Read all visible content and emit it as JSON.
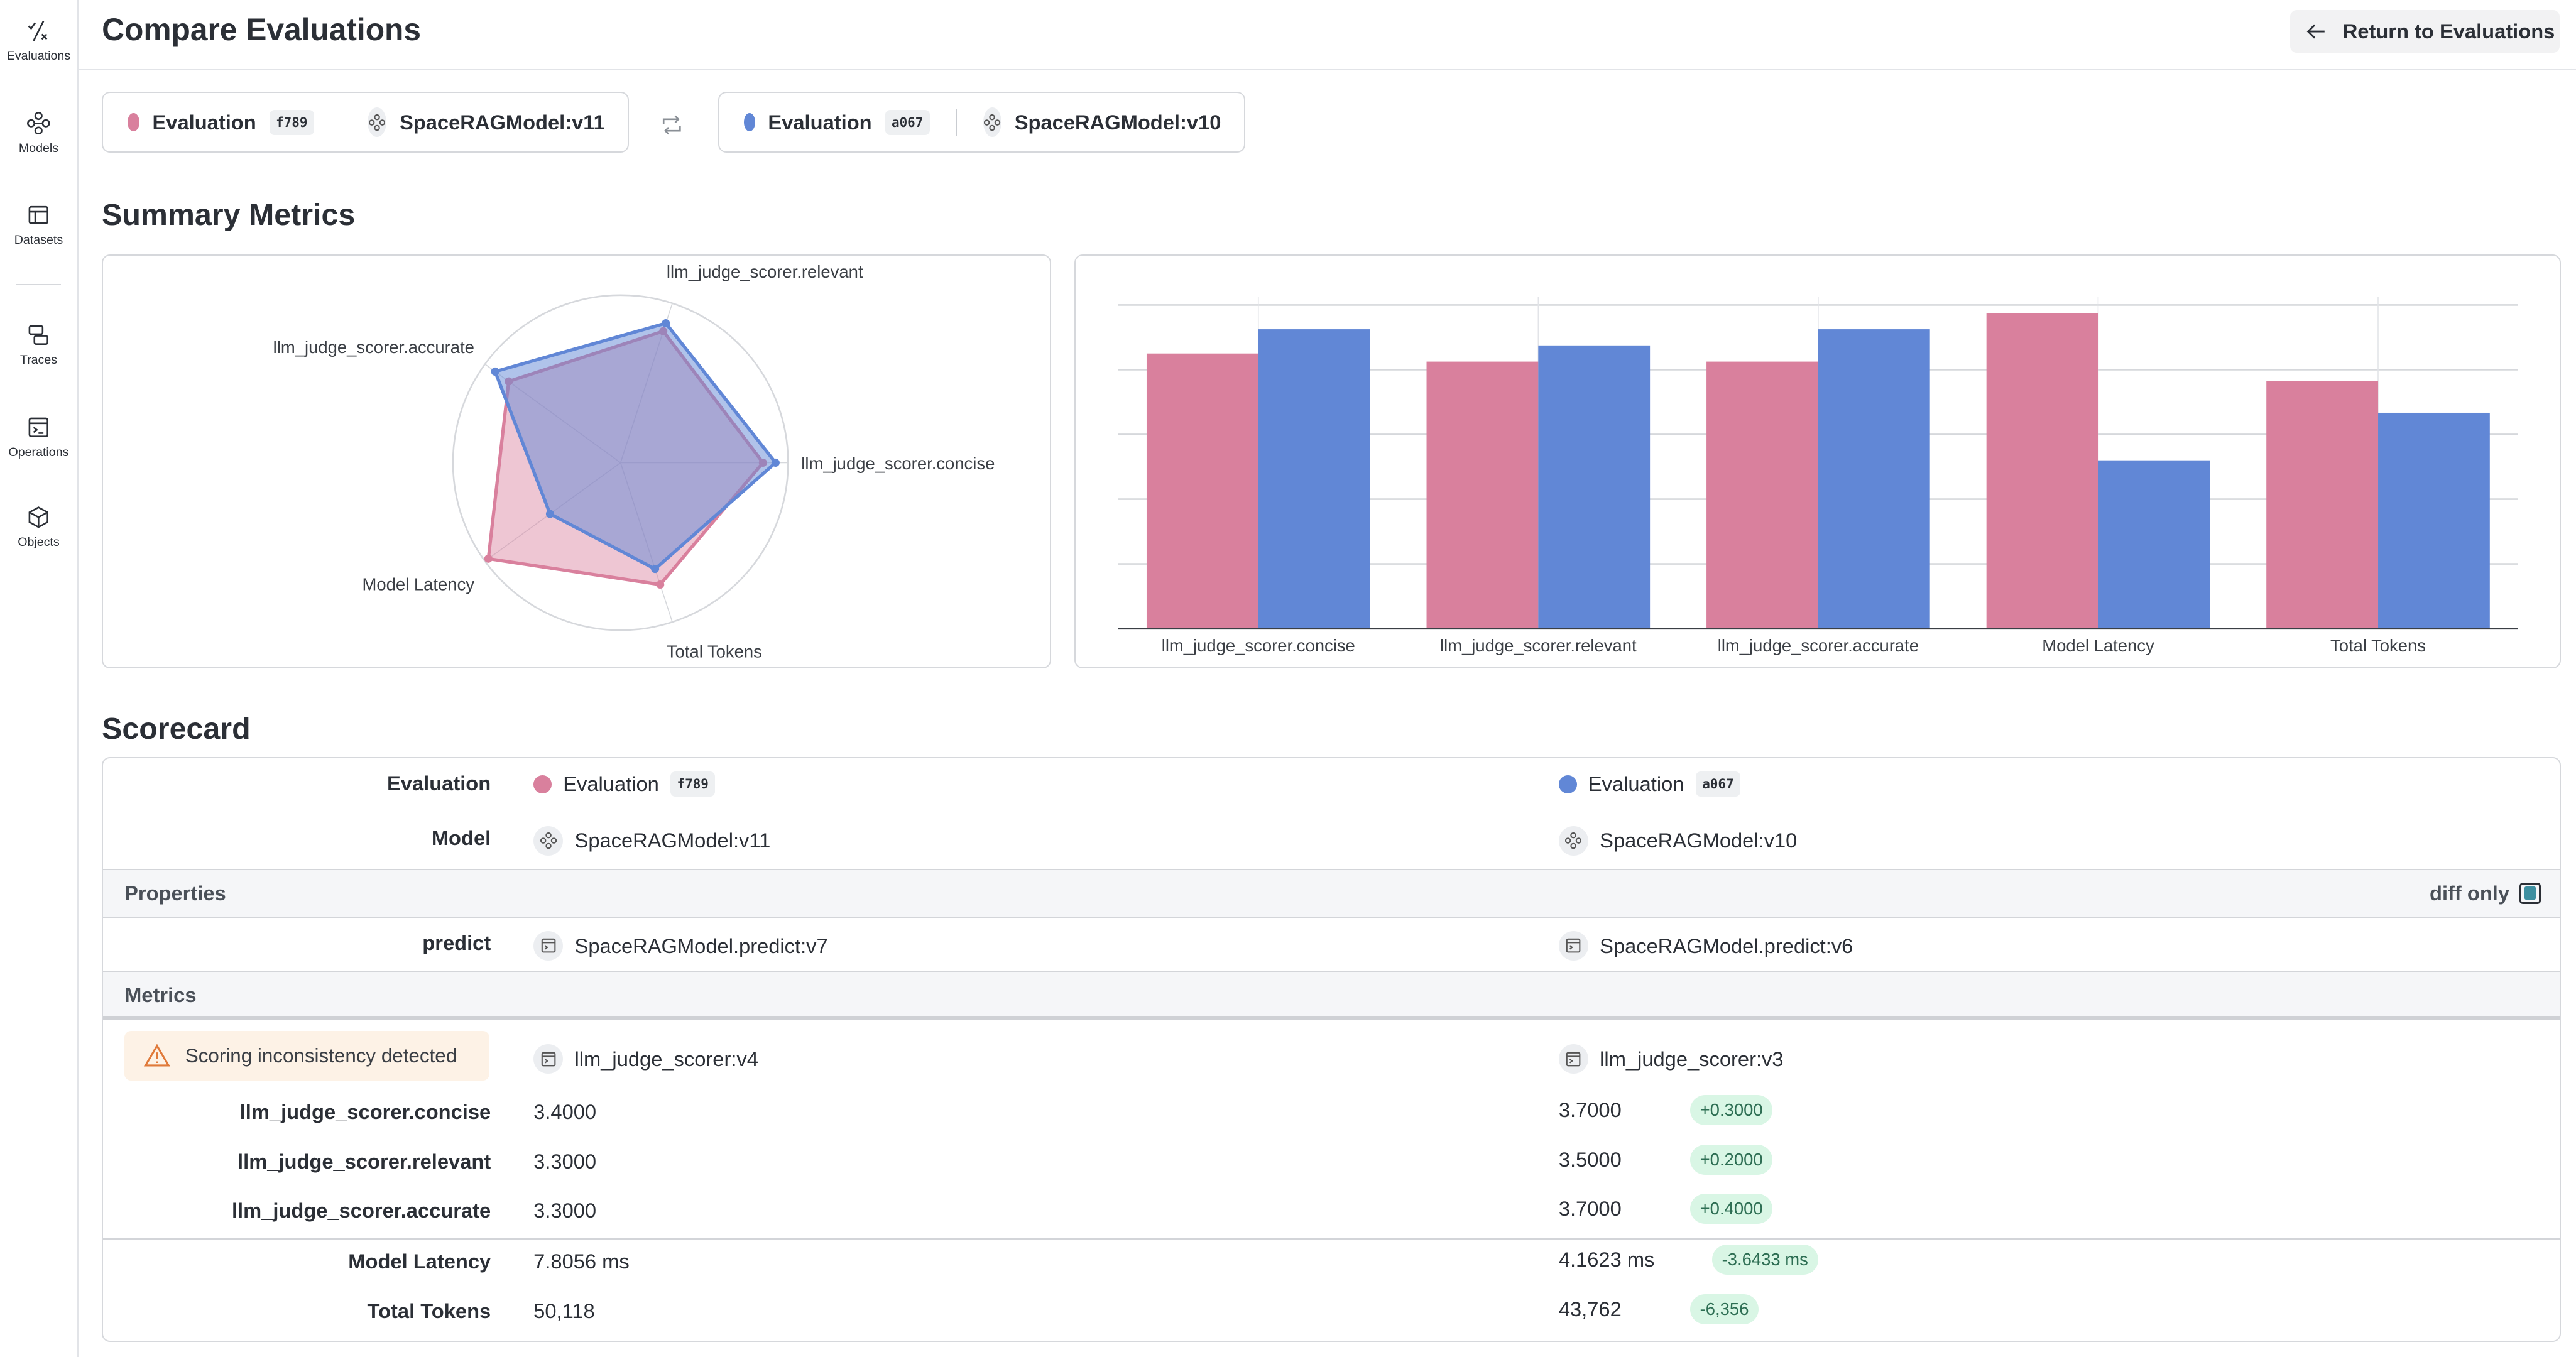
{
  "sidebar": {
    "items": [
      {
        "label": "Evaluations",
        "icon": "evaluations-icon"
      },
      {
        "label": "Models",
        "icon": "model-icon"
      },
      {
        "label": "Datasets",
        "icon": "table-icon"
      },
      {
        "label": "Traces",
        "icon": "traces-icon"
      },
      {
        "label": "Operations",
        "icon": "operations-icon"
      },
      {
        "label": "Objects",
        "icon": "cube-icon"
      }
    ]
  },
  "header": {
    "title": "Compare Evaluations",
    "return_label": "Return to Evaluations"
  },
  "selection": [
    {
      "eval_label": "Evaluation",
      "eval_id": "f789",
      "model": "SpaceRAGModel:v11",
      "color": "#d9809d"
    },
    {
      "eval_label": "Evaluation",
      "eval_id": "a067",
      "model": "SpaceRAGModel:v10",
      "color": "#6187d6"
    }
  ],
  "summary": {
    "title": "Summary Metrics"
  },
  "chart_data": [
    {
      "type": "radar",
      "axes": [
        "llm_judge_scorer.concise",
        "llm_judge_scorer.relevant",
        "llm_judge_scorer.accurate",
        "Model Latency",
        "Total Tokens"
      ],
      "rlim": [
        0,
        1
      ],
      "series": [
        {
          "values": [
            0.85,
            0.825,
            0.825,
            0.975,
            0.765
          ],
          "color": "#d9809d"
        },
        {
          "values": [
            0.925,
            0.875,
            0.925,
            0.52,
            0.667
          ],
          "color": "#6187d6"
        }
      ]
    },
    {
      "type": "bar",
      "categories": [
        "llm_judge_scorer.concise",
        "llm_judge_scorer.relevant",
        "llm_judge_scorer.accurate",
        "Model Latency",
        "Total Tokens"
      ],
      "ylim": [
        0,
        1
      ],
      "grid": true,
      "series": [
        {
          "values": [
            0.85,
            0.825,
            0.825,
            0.975,
            0.765
          ],
          "color": "#d9809d"
        },
        {
          "values": [
            0.925,
            0.875,
            0.925,
            0.52,
            0.667
          ],
          "color": "#6187d6"
        }
      ]
    }
  ],
  "scorecard": {
    "title": "Scorecard",
    "evaluation_label": "Evaluation",
    "model_label": "Model",
    "properties_label": "Properties",
    "diff_only_label": "diff only",
    "diff_only_checked": true,
    "predict_label": "predict",
    "predict_a": "SpaceRAGModel.predict:v7",
    "predict_b": "SpaceRAGModel.predict:v6",
    "metrics_label": "Metrics",
    "warning": "Scoring inconsistency detected",
    "scorer_a": "llm_judge_scorer:v4",
    "scorer_b": "llm_judge_scorer:v3",
    "metrics": [
      {
        "name": "llm_judge_scorer.concise",
        "a": "3.4000",
        "b": "3.7000",
        "delta": "+0.3000"
      },
      {
        "name": "llm_judge_scorer.relevant",
        "a": "3.3000",
        "b": "3.5000",
        "delta": "+0.2000"
      },
      {
        "name": "llm_judge_scorer.accurate",
        "a": "3.3000",
        "b": "3.7000",
        "delta": "+0.4000"
      },
      {
        "name": "Model Latency",
        "a": "7.8056 ms",
        "b": "4.1623 ms",
        "delta": "-3.6433 ms"
      },
      {
        "name": "Total Tokens",
        "a": "50,118",
        "b": "43,762",
        "delta": "-6,356"
      }
    ]
  }
}
